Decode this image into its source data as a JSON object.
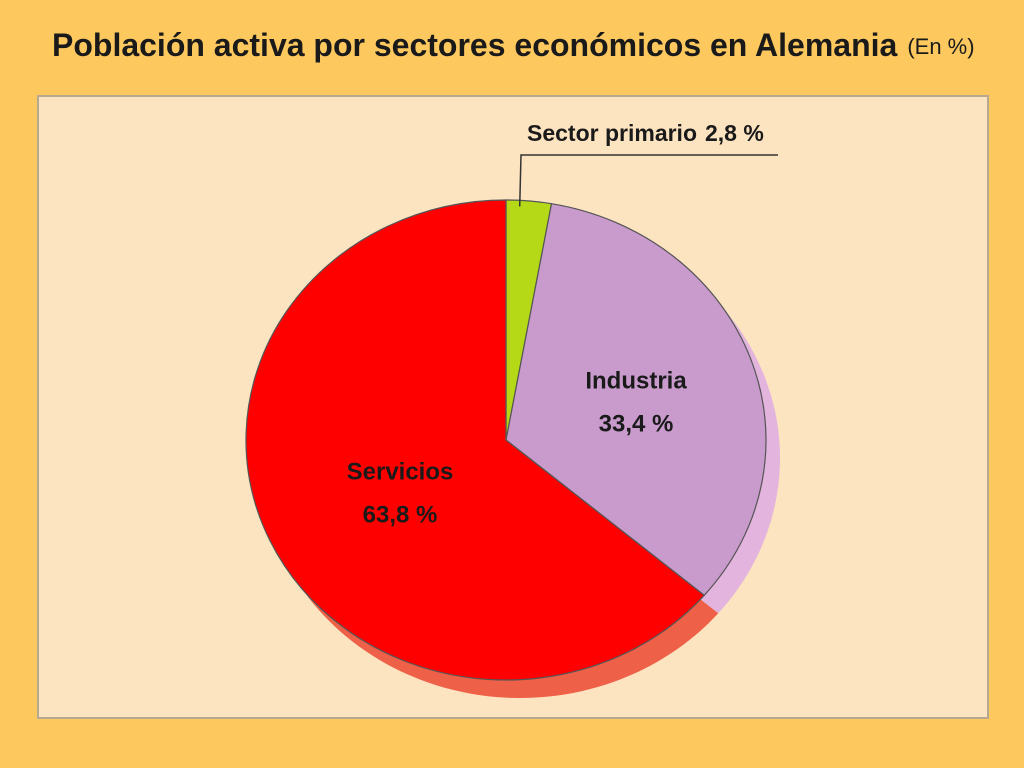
{
  "chart_data": {
    "type": "pie",
    "title": "Población activa por sectores económicos en Alemania",
    "subtitle": "(En %)",
    "categories": [
      "Sector primario",
      "Industria",
      "Servicios"
    ],
    "values": [
      2.8,
      33.4,
      63.8
    ],
    "value_labels": [
      "2,8 %",
      "33,4 %",
      "63,8 %"
    ],
    "colors": [
      "#b5d916",
      "#c89bcc",
      "#ff0000"
    ]
  }
}
